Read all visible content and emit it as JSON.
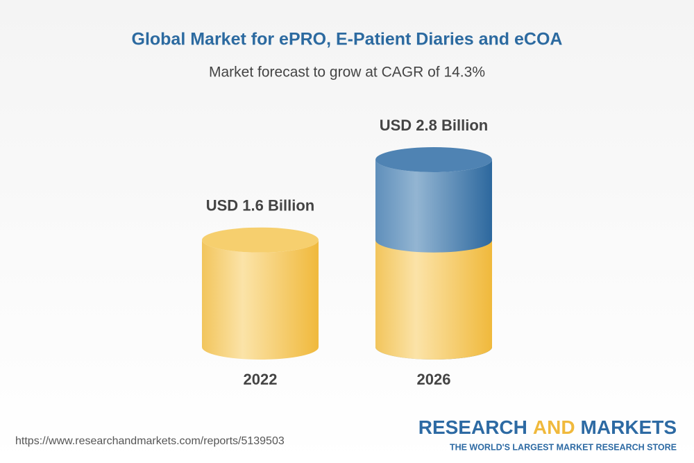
{
  "chart_data": {
    "type": "cylinder",
    "title": "Global Market for ePRO, E-Patient Diaries and eCOA",
    "subtitle": "Market forecast to grow at CAGR of 14.3%",
    "categories": [
      "2022",
      "2026"
    ],
    "values": [
      1.6,
      2.8
    ],
    "value_labels": [
      "USD 1.6 Billion",
      "USD 2.8 Billion"
    ],
    "color": "#f3c453",
    "growth_color": "#3e79ad",
    "source": "https://www.researchandmarkets.com/reports/5139503",
    "brand": [
      "RESEARCH",
      "AND",
      "MARKETS"
    ],
    "tagline": "THE WORLD'S LARGEST MARKET RESEARCH STORE"
  }
}
